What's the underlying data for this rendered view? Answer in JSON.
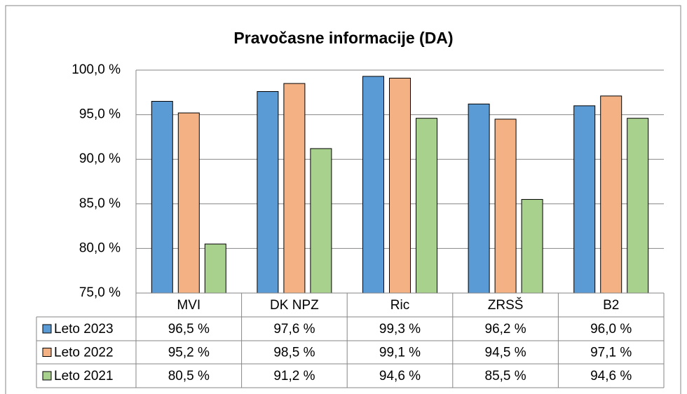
{
  "chart_data": {
    "type": "bar",
    "title": "Pravočasne informacije (DA)",
    "categories": [
      "MVI",
      "DK NPZ",
      "Ric",
      "ZRSŠ",
      "B2"
    ],
    "series": [
      {
        "name": "Leto 2023",
        "color": "#5b9bd5",
        "values": [
          96.5,
          97.6,
          99.3,
          96.2,
          96.0
        ],
        "value_labels": [
          "96,5 %",
          "97,6 %",
          "99,3 %",
          "96,2 %",
          "96,0 %"
        ]
      },
      {
        "name": "Leto 2022",
        "color": "#f4b183",
        "values": [
          95.2,
          98.5,
          99.1,
          94.5,
          97.1
        ],
        "value_labels": [
          "95,2 %",
          "98,5 %",
          "99,1 %",
          "94,5 %",
          "97,1 %"
        ]
      },
      {
        "name": "Leto 2021",
        "color": "#a9d18e",
        "values": [
          80.5,
          91.2,
          94.6,
          85.5,
          94.6
        ],
        "value_labels": [
          "80,5 %",
          "91,2 %",
          "94,6 %",
          "85,5 %",
          "94,6 %"
        ]
      }
    ],
    "ylim": [
      75,
      100
    ],
    "yticks": [
      {
        "value": 75,
        "label": "75,0 %"
      },
      {
        "value": 80,
        "label": "80,0 %"
      },
      {
        "value": 85,
        "label": "85,0 %"
      },
      {
        "value": 90,
        "label": "90,0 %"
      },
      {
        "value": 95,
        "label": "95,0 %"
      },
      {
        "value": 100,
        "label": "100,0 %"
      }
    ],
    "grid": true
  }
}
